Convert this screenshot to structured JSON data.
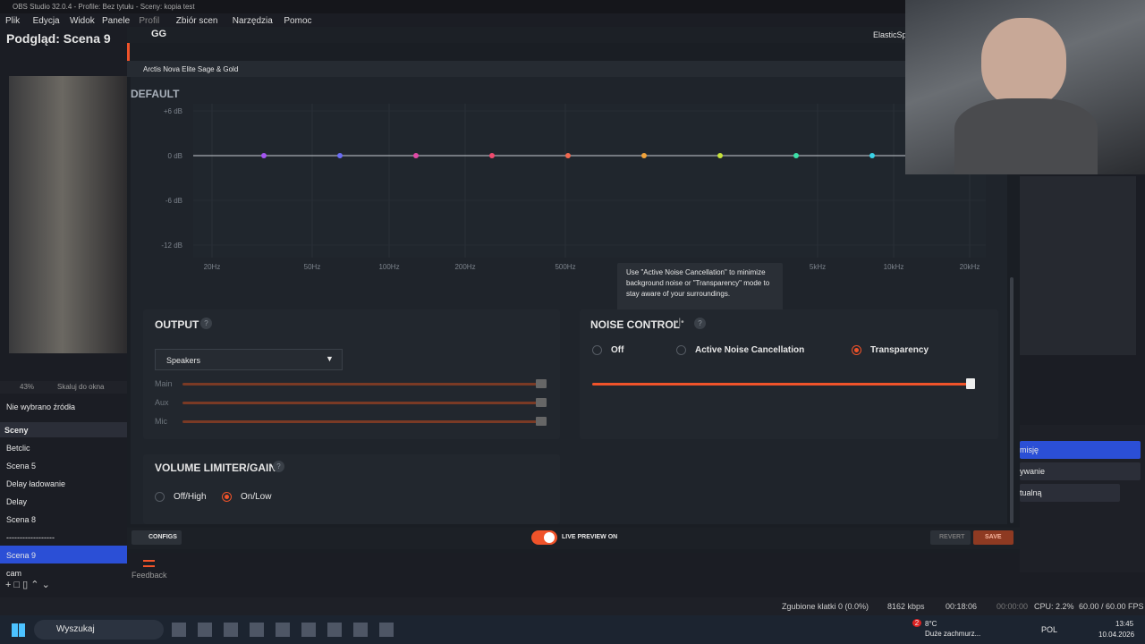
{
  "window_title": "OBS Studio 32.0.4 - Profile: Bez tytułu - Sceny: kopia test",
  "menu": [
    "Plik",
    "Edycja",
    "Widok",
    "Panele",
    "Profil",
    "Zbiór scen",
    "Narzędzia",
    "Pomoc"
  ],
  "preview_title": "Podgląd: Scena 9",
  "zoom": {
    "percent": "43%",
    "fit": "Skaluj do okna"
  },
  "no_source": "Nie wybrano źródła",
  "scenes": {
    "title": "Sceny",
    "items": [
      "Betclic",
      "Scena 5",
      "Delay ładowanie",
      "Delay",
      "Scena 8",
      "------------------",
      "Scena 9",
      "cam"
    ],
    "selected": "Scena 9"
  },
  "gg": {
    "title": "GG",
    "brand": "ElasticSp",
    "device": "Arctis Nova Elite Sage & Gold",
    "feedback": "Feedback"
  },
  "eq": {
    "preset": "DEFAULT",
    "db_labels": [
      "+6 dB",
      "0 dB",
      "-6 dB",
      "-12 dB"
    ],
    "freq_labels": [
      "20Hz",
      "50Hz",
      "100Hz",
      "200Hz",
      "500Hz",
      "5kHz",
      "10kHz",
      "20kHz"
    ],
    "band_colors": [
      "#a455f2",
      "#6a6cf5",
      "#e04aa6",
      "#f04a6e",
      "#f0684f",
      "#f2a33a",
      "#c6e23a",
      "#3ce0a8",
      "#3ad2e6"
    ]
  },
  "tooltip": "Use \"Active Noise Cancellation\" to minimize background noise or \"Transparency\" mode to stay aware of your surroundings.",
  "output": {
    "title": "OUTPUT",
    "help": "?",
    "device": "Speakers",
    "sliders": [
      "Main",
      "Aux",
      "Mic"
    ]
  },
  "noise_control": {
    "title": "NOISE CONTROL",
    "help": "?",
    "options": [
      "Off",
      "Active Noise Cancellation",
      "Transparency"
    ],
    "selected": "Transparency"
  },
  "limiter": {
    "title": "VOLUME LIMITER/GAIN",
    "help": "?",
    "options": [
      "Off/High",
      "On/Low"
    ],
    "selected": "On/Low"
  },
  "footer": {
    "configs": "CONFIGS",
    "preview": "LIVE PREVIEW ON",
    "revert": "REVERT",
    "save": "SAVE"
  },
  "side_buttons": [
    "misję",
    "ywanie",
    "tualną"
  ],
  "status": {
    "dropped": "Zgubione klatki 0 (0.0%)",
    "bitrate": "8162 kbps",
    "live": "00:18:06",
    "rec": "00:00:00",
    "cpu": "CPU: 2.2%",
    "fps": "60.00 / 60.00 FPS"
  },
  "taskbar": {
    "search": "Wyszukaj",
    "badge": "2",
    "temp": "8°C",
    "weather": "Duże zachmurz...",
    "lang": "POL",
    "time": "13:45",
    "date": "10.04.2026"
  }
}
